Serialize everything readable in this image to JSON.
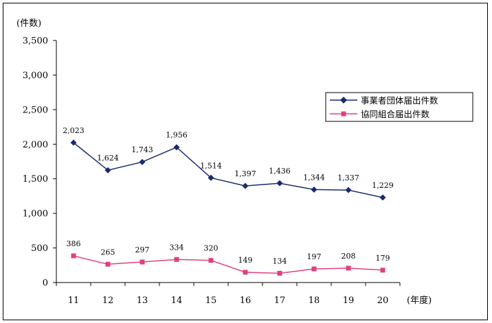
{
  "chart_data": {
    "type": "line",
    "title": "",
    "ylabel": "(件数)",
    "xlabel": "(年度)",
    "categories": [
      "11",
      "12",
      "13",
      "14",
      "15",
      "16",
      "17",
      "18",
      "19",
      "20"
    ],
    "ylim": [
      0,
      3500
    ],
    "yticks": [
      0,
      500,
      1000,
      1500,
      2000,
      2500,
      3000,
      3500
    ],
    "ytick_labels": [
      "0",
      "500",
      "1,000",
      "1,500",
      "2,000",
      "2,500",
      "3,000",
      "3,500"
    ],
    "grid": false,
    "legend_position": "right",
    "series": [
      {
        "name": "事業者団体届出件数",
        "color": "#1a2a6c",
        "marker": "diamond",
        "values": [
          2023,
          1624,
          1743,
          1956,
          1514,
          1397,
          1436,
          1344,
          1337,
          1229
        ],
        "labels": [
          "2,023",
          "1,624",
          "1,743",
          "1,956",
          "1,514",
          "1,397",
          "1,436",
          "1,344",
          "1,337",
          "1,229"
        ]
      },
      {
        "name": "協同組合届出件数",
        "color": "#e0407f",
        "marker": "square",
        "values": [
          386,
          265,
          297,
          334,
          320,
          149,
          134,
          197,
          208,
          179
        ],
        "labels": [
          "386",
          "265",
          "297",
          "334",
          "320",
          "149",
          "134",
          "197",
          "208",
          "179"
        ]
      }
    ]
  }
}
